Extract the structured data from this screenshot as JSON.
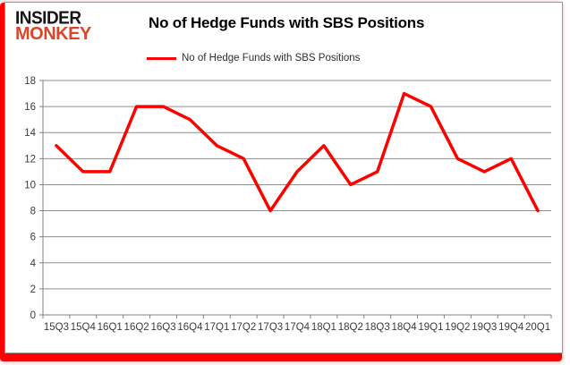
{
  "brand": {
    "line1": "INSIDER",
    "line2": "MONKEY"
  },
  "header": {
    "title": "No of Hedge Funds with SBS Positions"
  },
  "legend": {
    "label": "No of Hedge Funds with SBS Positions"
  },
  "colors": {
    "series_red": "#fe0000",
    "logo_red": "#d9472b",
    "gridline": "#8f8f8f",
    "axis": "#808080",
    "tick_label": "#3c3c3c",
    "card_border": "#9a9a9a"
  },
  "chart_data": {
    "type": "line",
    "title": "No of Hedge Funds with SBS Positions",
    "categories": [
      "15Q3",
      "15Q4",
      "16Q1",
      "16Q2",
      "16Q3",
      "16Q4",
      "17Q1",
      "17Q2",
      "17Q3",
      "17Q4",
      "18Q1",
      "18Q2",
      "18Q3",
      "18Q4",
      "19Q1",
      "19Q2",
      "19Q3",
      "19Q4",
      "20Q1"
    ],
    "series": [
      {
        "name": "No of Hedge Funds with SBS Positions",
        "color": "#fe0000",
        "values": [
          13,
          11,
          11,
          16,
          16,
          15,
          13,
          12,
          8,
          11,
          13,
          10,
          11,
          17,
          16,
          12,
          11,
          12,
          8
        ]
      }
    ],
    "xlabel": "",
    "ylabel": "",
    "ylim": [
      0,
      18
    ],
    "ytick_step": 2,
    "grid": true,
    "legend_position": "top-center"
  }
}
